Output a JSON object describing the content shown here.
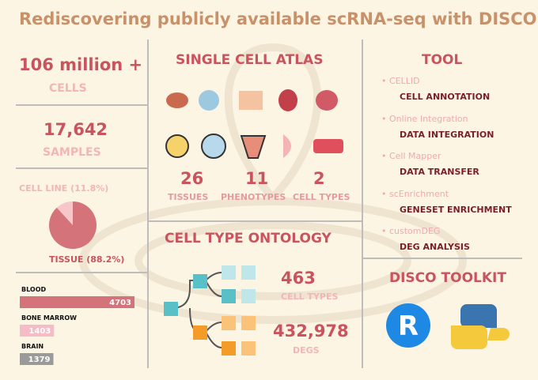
{
  "title": "Rediscovering publicly available scRNA-seq with DISCO",
  "stats": [
    {
      "number": "106 million +",
      "label": "CELLS"
    },
    {
      "number": "17,642",
      "label": "SAMPLES"
    }
  ],
  "pie": {
    "slices": [
      {
        "label": "CELL LINE (11.8%)",
        "value": 11.8,
        "color": "#f6c6c8"
      },
      {
        "label": "TISSUE (88.2%)",
        "value": 88.2,
        "color": "#d4737a"
      }
    ]
  },
  "bars": [
    {
      "label": "BLOOD",
      "value": 4703,
      "color": "#d4737a"
    },
    {
      "label": "BONE MARROW",
      "value": 1403,
      "color": "#f6bcc6"
    },
    {
      "label": "BRAIN",
      "value": 1379,
      "color": "#9a9a9a"
    }
  ],
  "atlas": {
    "title": "SINGLE CELL ATLAS",
    "counts": [
      {
        "number": "26",
        "label": "TISSUES"
      },
      {
        "number": "11",
        "label": "PHENOTYPES"
      },
      {
        "number": "2",
        "label": "CELL TYPES"
      }
    ]
  },
  "ontology": {
    "title": "CELL TYPE ONTOLOGY",
    "counts": [
      {
        "number": "463",
        "label": "CELL TYPES"
      },
      {
        "number": "432,978",
        "label": "DEGS"
      }
    ]
  },
  "tool": {
    "title": "TOOL",
    "items": [
      {
        "name": "CELLID",
        "function": "CELL ANNOTATION"
      },
      {
        "name": "Online Integration",
        "function": "DATA INTEGRATION"
      },
      {
        "name": "Cell Mapper",
        "function": "DATA TRANSFER"
      },
      {
        "name": "scEnrichment",
        "function": "GENESET ENRICHMENT"
      },
      {
        "name": "customDEG",
        "function": "DEG ANALYSIS"
      }
    ]
  },
  "toolkit": {
    "title": "DISCO TOOLKIT",
    "r_logo": "R"
  }
}
